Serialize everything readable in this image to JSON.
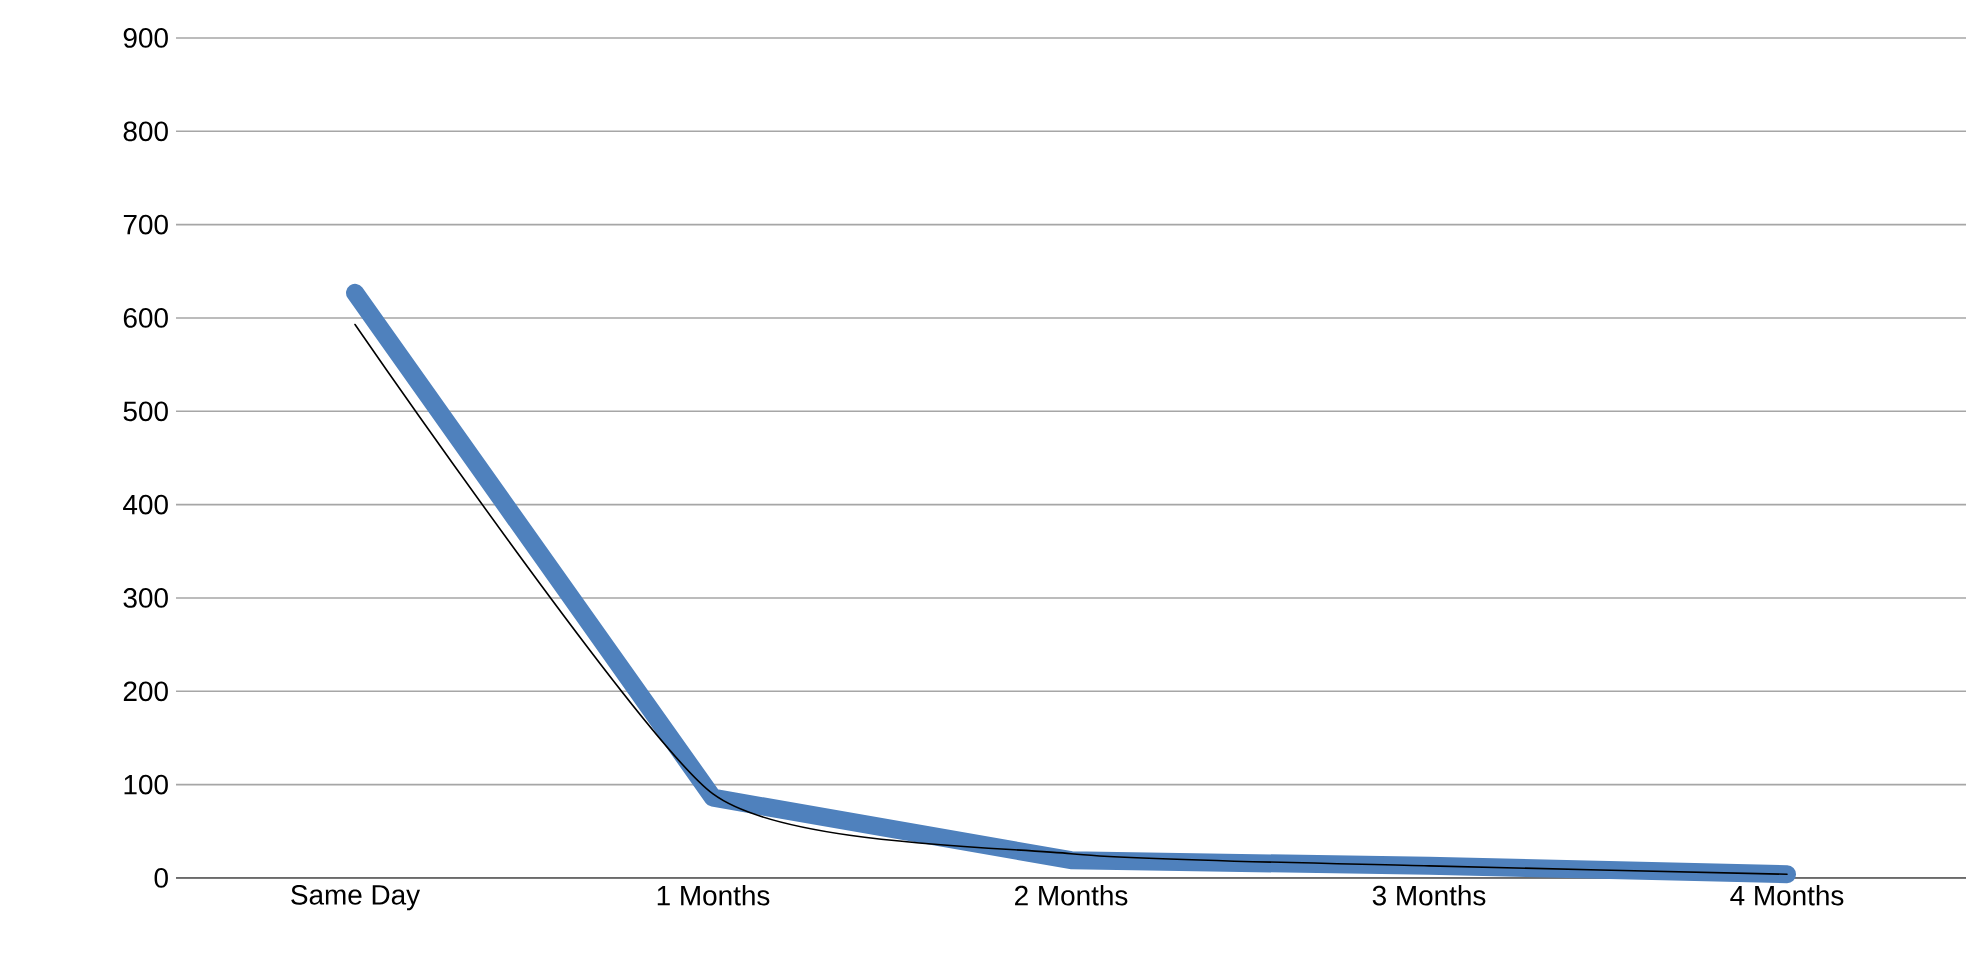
{
  "chart_data": {
    "type": "line",
    "categories": [
      "Same Day",
      "1 Months",
      "2 Months",
      "3 Months",
      "4 Months"
    ],
    "series": [
      {
        "color": "#4f81bd",
        "values": [
          627,
          86,
          19,
          13,
          4
        ]
      },
      {
        "type": "line",
        "color": "#000000",
        "values": [
          593,
          90,
          26,
          13,
          4
        ]
      }
    ],
    "ylim": [
      0,
      900
    ],
    "yticks": [
      0,
      100,
      200,
      300,
      400,
      500,
      600,
      700,
      800,
      900
    ],
    "grid": "y",
    "marker": "none",
    "line_style": "solid"
  }
}
